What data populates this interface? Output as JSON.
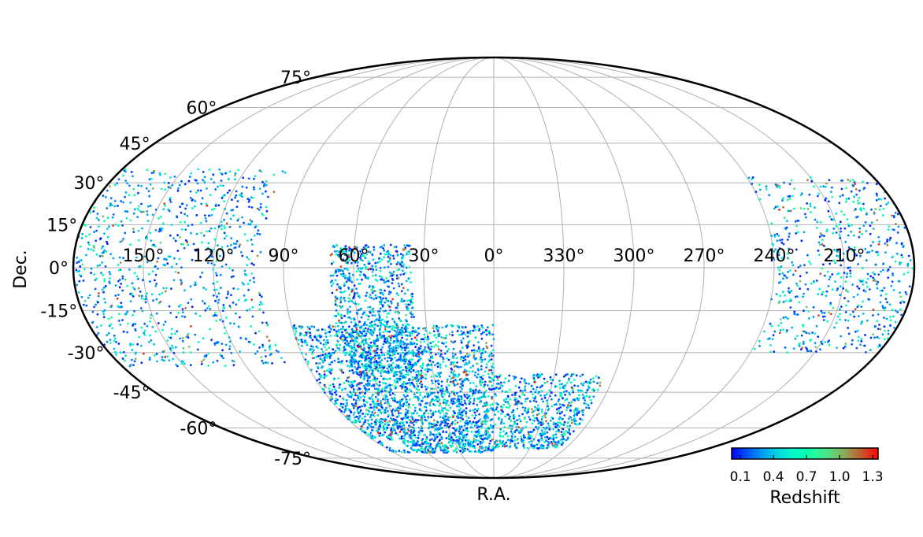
{
  "chart_data": {
    "type": "scatter",
    "projection": "mollweide",
    "xlabel": "R.A.",
    "ylabel": "Dec.",
    "ra_tick_labels": [
      "150°",
      "120°",
      "90°",
      "60°",
      "30°",
      "0°",
      "330°",
      "300°",
      "270°",
      "240°",
      "210°"
    ],
    "ra_ticks": [
      150,
      120,
      90,
      60,
      30,
      0,
      330,
      300,
      270,
      240,
      210
    ],
    "dec_tick_labels": [
      "75°",
      "60°",
      "45°",
      "30°",
      "15°",
      "0°",
      "-15°",
      "-30°",
      "-45°",
      "-60°",
      "-75°"
    ],
    "dec_ticks": [
      75,
      60,
      45,
      30,
      15,
      0,
      -15,
      -30,
      -45,
      -60,
      -75
    ],
    "ra_direction": "increasing to the left",
    "grid": true,
    "colorbar": {
      "label": "Redshift",
      "cmap": "rainbow",
      "range": [
        0.02,
        1.35
      ],
      "tick_values": [
        0.1,
        0.4,
        0.7,
        1.0,
        1.3
      ],
      "tick_labels": [
        "0.1",
        "0.4",
        "0.7",
        "1.0",
        "1.3"
      ],
      "placement": "bottom-right"
    },
    "point_color": "redshift",
    "regions": [
      {
        "ra_min": 100,
        "ra_max": 180,
        "dec_min": -35,
        "dec_max": 35,
        "count": 900
      },
      {
        "ra_min": 180,
        "ra_max": 240,
        "dec_min": -30,
        "dec_max": 32,
        "count": 650
      },
      {
        "ra_min": 35,
        "ra_max": 70,
        "dec_min": -40,
        "dec_max": 8,
        "count": 900
      },
      {
        "ra_min": 0,
        "ra_max": 90,
        "dec_min": -72,
        "dec_max": -20,
        "count": 2400
      },
      {
        "ra_min": 305,
        "ra_max": 360,
        "dec_min": -70,
        "dec_max": -38,
        "count": 650
      }
    ],
    "holes": [
      {
        "ra": 78,
        "dec": -68,
        "ra_halfwidth": 8,
        "dec_halfwidth": 2.5
      }
    ]
  }
}
